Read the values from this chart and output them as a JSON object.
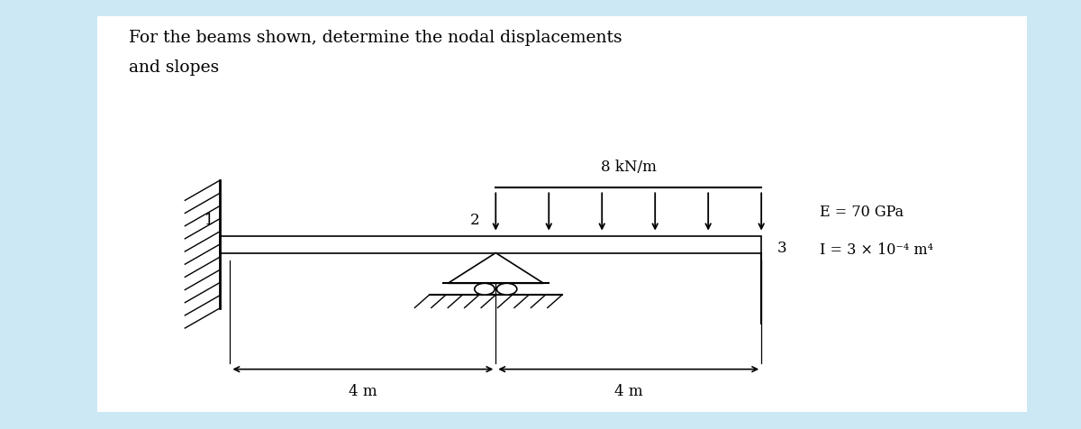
{
  "title_line1": "For the beams shown, determine the nodal displacements",
  "title_line2": "and slopes",
  "load_label": "8 kN/m",
  "node1_label": "1",
  "node2_label": "2",
  "node3_label": "3",
  "E_label": "E = 70 GPa",
  "I_label": "I = 3 × 10⁻⁴ m⁴",
  "dim1_label": "4 m",
  "dim2_label": "4 m",
  "bg_color": "#cde8f5",
  "inner_bg": "#ffffff",
  "beam_color": "#000000",
  "text_color": "#000000",
  "num_load_arrows": 6
}
